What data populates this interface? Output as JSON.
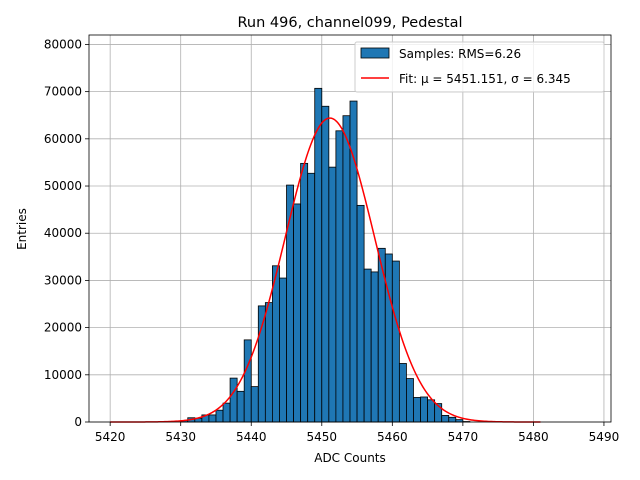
{
  "chart_data": {
    "type": "bar",
    "title": "Run 496, channel099, Pedestal",
    "xlabel": "ADC Counts",
    "ylabel": "Entries",
    "xlim": [
      5417,
      5491
    ],
    "ylim": [
      0,
      82000
    ],
    "xticks": [
      5420,
      5430,
      5440,
      5450,
      5460,
      5470,
      5480,
      5490
    ],
    "yticks": [
      0,
      10000,
      20000,
      30000,
      40000,
      50000,
      60000,
      70000,
      80000
    ],
    "grid": true,
    "legend_position": "top-right",
    "histogram": {
      "name": "Samples: RMS=6.26",
      "color": "#1f77b4",
      "edge_color": "#000000",
      "bin_width": 1,
      "bin_starts": [
        5430,
        5431,
        5432,
        5433,
        5434,
        5435,
        5436,
        5437,
        5438,
        5439,
        5440,
        5441,
        5442,
        5443,
        5444,
        5445,
        5446,
        5447,
        5448,
        5449,
        5450,
        5451,
        5452,
        5453,
        5454,
        5455,
        5456,
        5457,
        5458,
        5459,
        5460,
        5461,
        5462,
        5463,
        5464,
        5465,
        5466,
        5467,
        5468,
        5469,
        5470
      ],
      "counts": [
        300,
        900,
        800,
        1500,
        1500,
        2500,
        4000,
        9300,
        6500,
        17400,
        7500,
        24600,
        25300,
        33100,
        30500,
        50200,
        46200,
        54800,
        52700,
        70700,
        66900,
        54000,
        61700,
        64900,
        68000,
        45900,
        32400,
        31800,
        36800,
        35600,
        34100,
        12400,
        9200,
        5200,
        5300,
        4700,
        3900,
        1400,
        1000,
        500,
        100
      ]
    },
    "fit": {
      "name": "Fit: μ = 5451.151, σ = 6.345",
      "label_prefix": "Fit: ",
      "mu_label": "μ = 5451.151",
      "sigma_label": "σ = 6.345",
      "color": "#ff0000",
      "mu": 5451.151,
      "sigma": 6.345,
      "amplitude": 64400,
      "x_range": [
        5420,
        5481
      ]
    }
  }
}
